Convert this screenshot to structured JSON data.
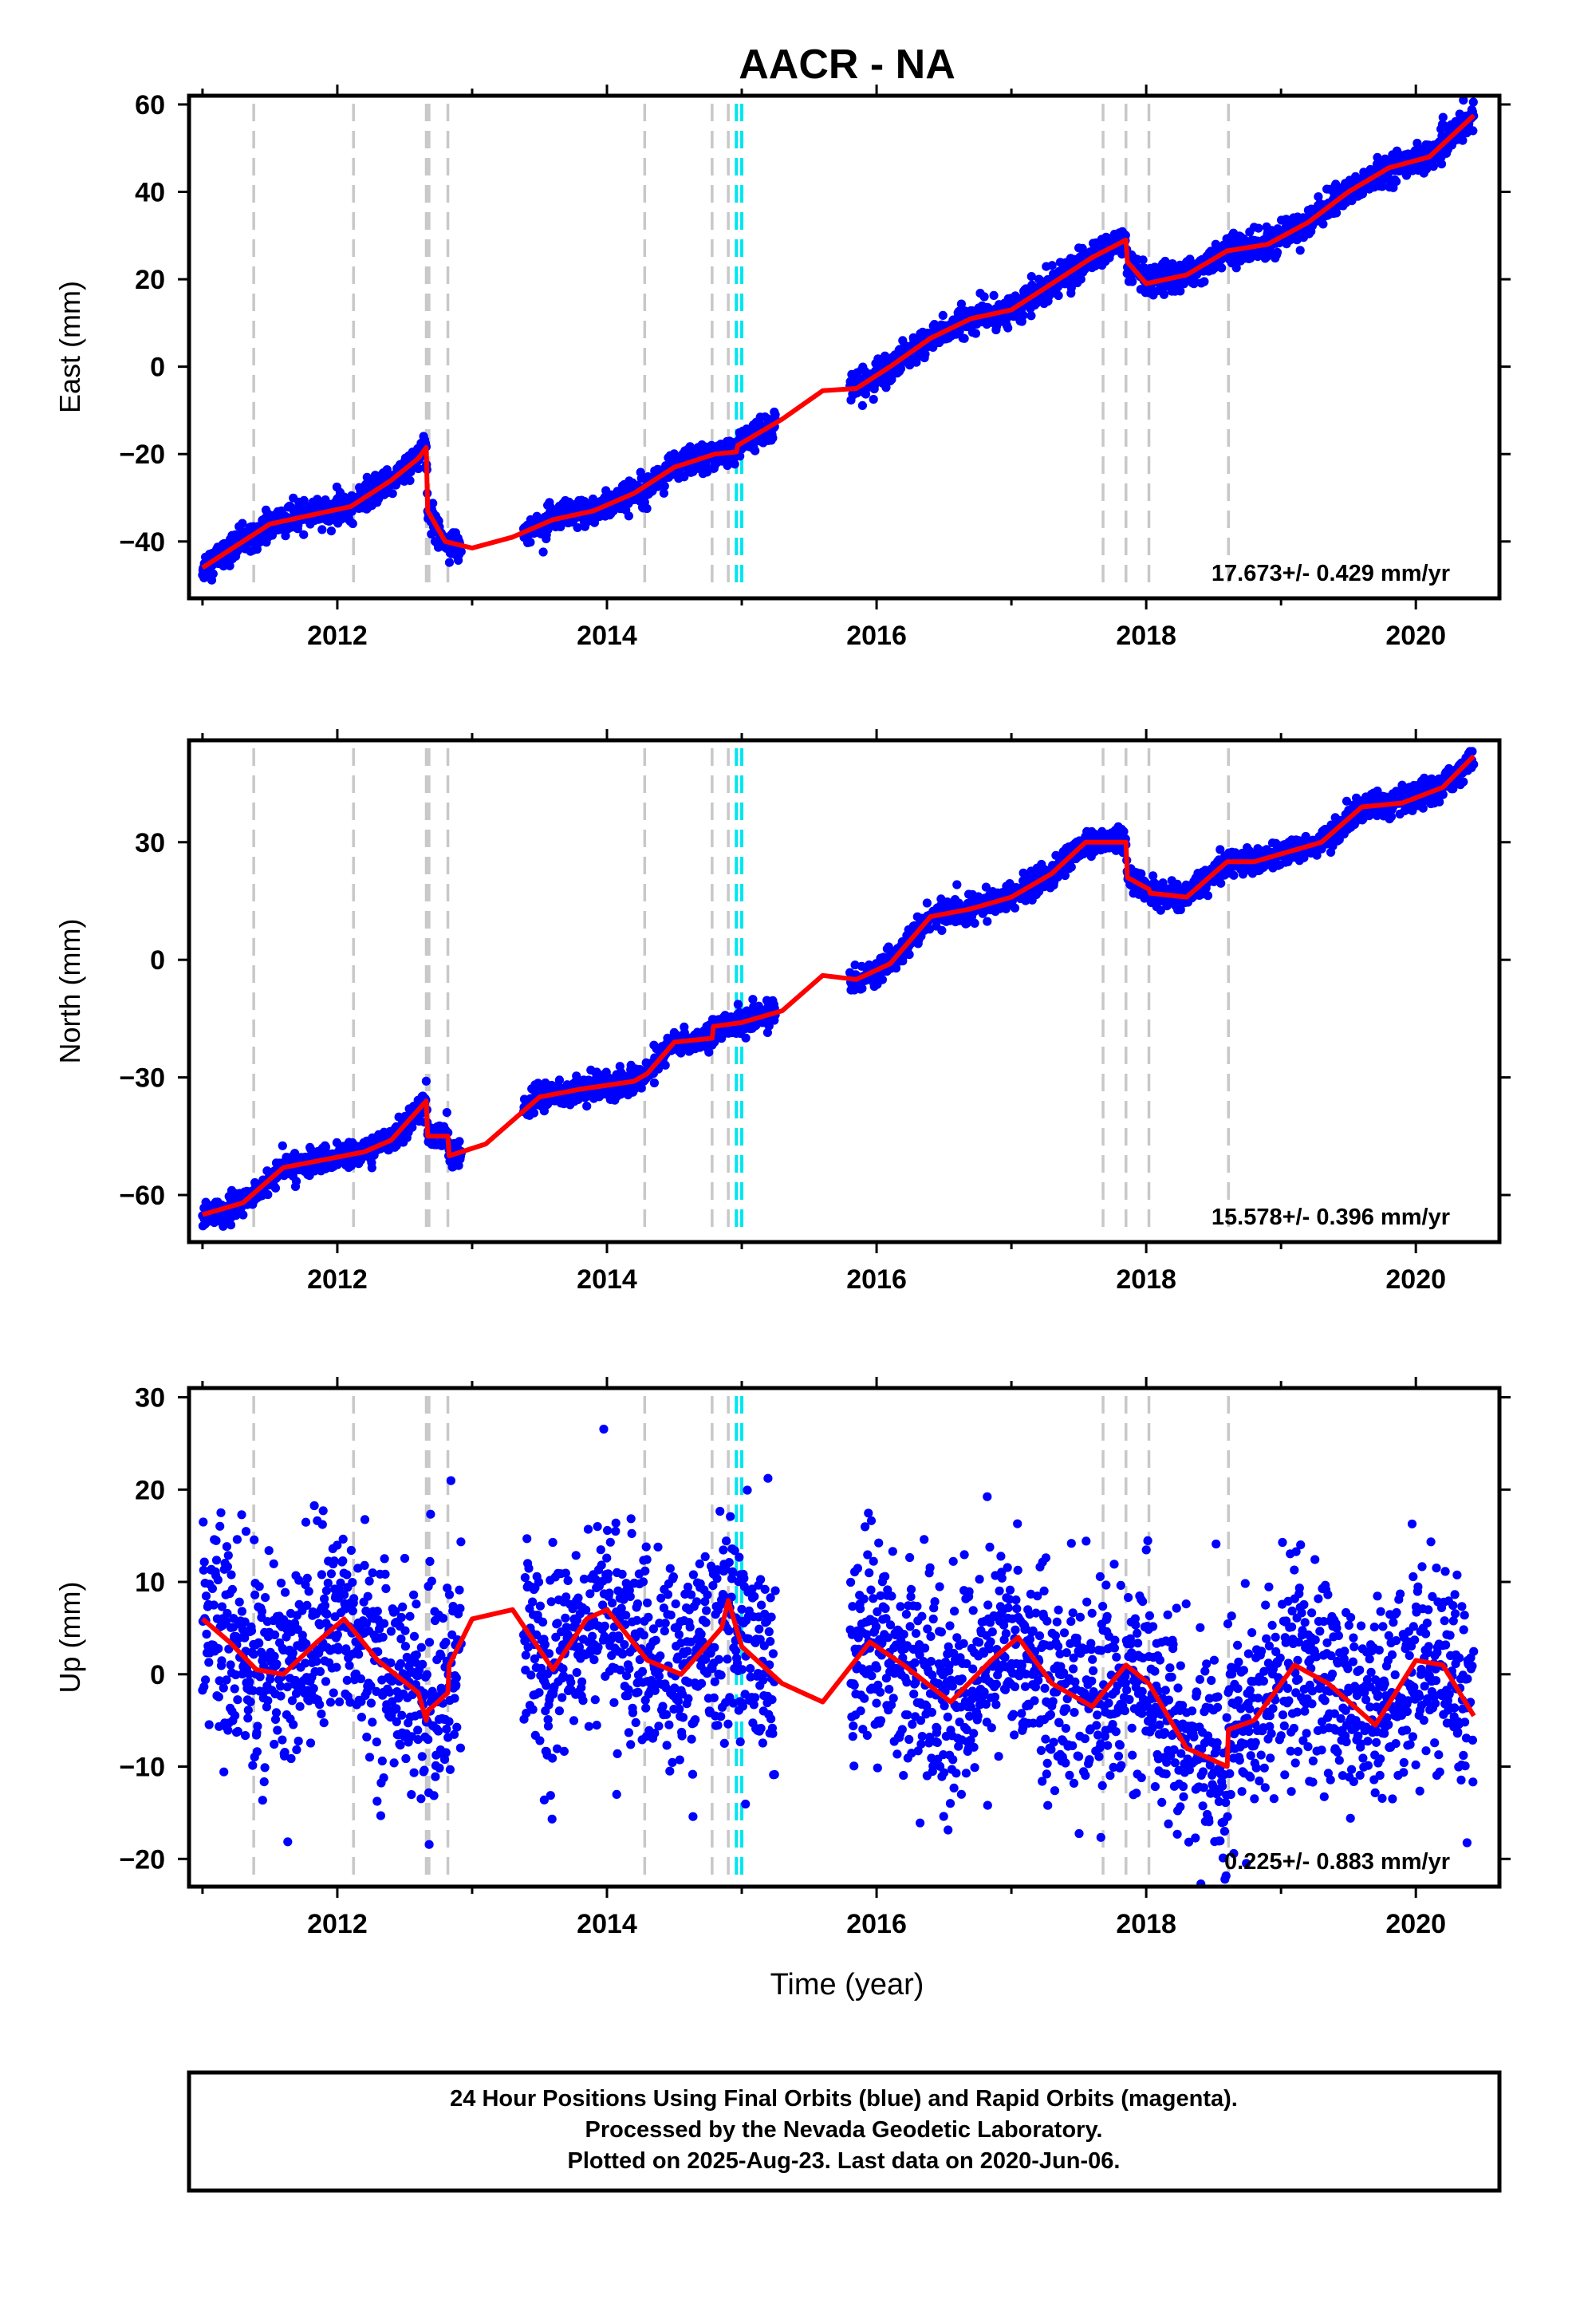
{
  "chart_data": {
    "type": "scatter",
    "title": "AACR - NA",
    "xlabel": "Time (year)",
    "xlim": [
      2010.9,
      2020.62
    ],
    "x_ticks": [
      "2012",
      "2014",
      "2016",
      "2018",
      "2020"
    ],
    "grid": false,
    "point_color": "#0000ff",
    "fit_color": "#ff0000",
    "event_line_color": "#c8c8c8",
    "highlight_line_color": "#00e5ee",
    "event_lines": [
      2011.38,
      2012.12,
      2012.66,
      2012.68,
      2012.82,
      2014.28,
      2014.78,
      2014.9,
      2017.68,
      2017.85,
      2018.02,
      2018.61
    ],
    "highlight_lines": [
      2014.96,
      2015.0
    ],
    "panels": [
      {
        "ylabel": "East (mm)",
        "ylim": [
          -53,
          62
        ],
        "y_ticks": [
          "60",
          "40",
          "20",
          "0",
          "−20",
          "−40"
        ],
        "rate_label": "17.673+/- 0.429 mm/yr",
        "noise": 1.6,
        "gaps": [
          [
            2012.92,
            2013.38
          ],
          [
            2015.25,
            2015.8
          ]
        ],
        "fit": {
          "x": [
            2011.0,
            2011.2,
            2011.5,
            2011.8,
            2012.1,
            2012.4,
            2012.6,
            2012.66,
            2012.67,
            2012.8,
            2013.0,
            2013.3,
            2013.6,
            2013.9,
            2014.2,
            2014.5,
            2014.8,
            2014.96,
            2014.97,
            2015.3,
            2015.6,
            2015.85,
            2016.1,
            2016.4,
            2016.7,
            2017.0,
            2017.3,
            2017.6,
            2017.85,
            2017.86,
            2018.0,
            2018.3,
            2018.6,
            2018.9,
            2019.2,
            2019.5,
            2019.8,
            2020.1,
            2020.43
          ],
          "y": [
            -46,
            -42,
            -36,
            -34,
            -32,
            -26,
            -21,
            -18.5,
            -33,
            -40,
            -41.5,
            -39,
            -35,
            -33,
            -29,
            -23,
            -20,
            -19.5,
            -18,
            -12,
            -5.5,
            -5,
            0,
            6.5,
            11,
            13,
            19,
            25,
            29,
            24,
            19,
            21,
            26.5,
            28,
            33,
            40,
            45.5,
            48,
            57.5
          ]
        }
      },
      {
        "ylabel": "North (mm)",
        "ylim": [
          -72,
          56
        ],
        "y_ticks": [
          "30",
          "0",
          "−30",
          "−60"
        ],
        "rate_label": "15.578+/- 0.396 mm/yr",
        "noise": 1.6,
        "gaps": [
          [
            2012.92,
            2013.38
          ],
          [
            2015.25,
            2015.8
          ]
        ],
        "fit": {
          "x": [
            2011.0,
            2011.3,
            2011.6,
            2011.9,
            2012.2,
            2012.4,
            2012.66,
            2012.67,
            2012.82,
            2012.83,
            2013.1,
            2013.5,
            2013.8,
            2014.2,
            2014.3,
            2014.5,
            2014.78,
            2014.79,
            2015.0,
            2015.3,
            2015.6,
            2015.85,
            2016.1,
            2016.4,
            2016.7,
            2017.0,
            2017.3,
            2017.55,
            2017.85,
            2017.86,
            2018.02,
            2018.03,
            2018.3,
            2018.6,
            2018.8,
            2019.0,
            2019.3,
            2019.6,
            2019.9,
            2020.2,
            2020.43
          ],
          "y": [
            -65,
            -62,
            -53,
            -51,
            -49,
            -46,
            -36,
            -45,
            -45,
            -50,
            -47,
            -35,
            -33,
            -31,
            -29,
            -21,
            -20,
            -17,
            -16,
            -13,
            -4,
            -5,
            -1,
            11,
            13,
            16,
            22,
            30,
            30,
            21,
            18,
            17,
            16,
            25,
            25,
            27,
            30,
            39,
            40,
            44,
            52
          ]
        }
      },
      {
        "ylabel": "Up (mm)",
        "ylim": [
          -23,
          31
        ],
        "y_ticks": [
          "30",
          "20",
          "10",
          "0",
          "−10",
          "−20"
        ],
        "rate_label": "0.225+/- 0.883 mm/yr",
        "noise": 5.5,
        "gaps": [
          [
            2012.92,
            2013.38
          ],
          [
            2015.25,
            2015.8
          ]
        ],
        "fit": {
          "x": [
            2011.0,
            2011.2,
            2011.4,
            2011.6,
            2011.85,
            2012.05,
            2012.3,
            2012.6,
            2012.66,
            2012.67,
            2012.82,
            2012.83,
            2013.0,
            2013.3,
            2013.6,
            2013.85,
            2014.0,
            2014.3,
            2014.55,
            2014.85,
            2014.9,
            2015.0,
            2015.3,
            2015.6,
            2015.95,
            2016.2,
            2016.55,
            2016.85,
            2017.05,
            2017.3,
            2017.6,
            2017.68,
            2017.85,
            2018.02,
            2018.3,
            2018.6,
            2018.61,
            2018.8,
            2019.1,
            2019.35,
            2019.7,
            2020.0,
            2020.2,
            2020.43
          ],
          "y": [
            6,
            3.5,
            0.5,
            0,
            3.5,
            6,
            1.5,
            -2,
            -5,
            -4,
            -2,
            1,
            6,
            7,
            0.5,
            6,
            7,
            1.5,
            0,
            5,
            8,
            3,
            -1,
            -3,
            3.5,
            1,
            -3,
            1.5,
            4,
            -1,
            -3.5,
            -2,
            1,
            -1,
            -8,
            -10,
            -6,
            -5,
            1,
            -1,
            -5.5,
            1.5,
            1,
            -4.5
          ]
        }
      }
    ]
  },
  "footer": {
    "line1": "24 Hour Positions Using Final Orbits (blue) and Rapid Orbits (magenta).",
    "line2": "Processed by the Nevada Geodetic Laboratory.",
    "line3": "Plotted on 2025-Aug-23. Last data on 2020-Jun-06."
  }
}
